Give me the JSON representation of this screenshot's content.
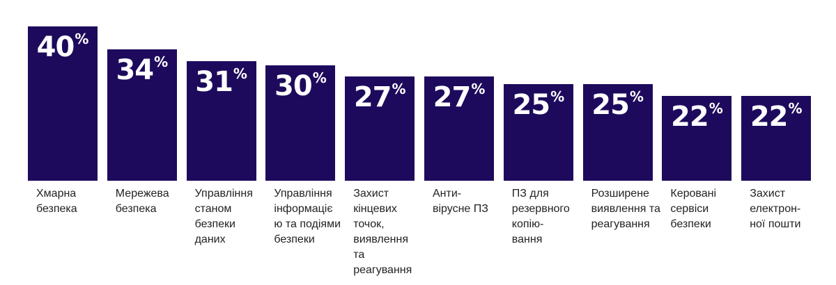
{
  "chart_data": {
    "type": "bar",
    "categories": [
      "Хмарна\nбезпека",
      "Мережева\nбезпека",
      "Управління\nстаном\nбезпеки\nданих",
      "Управління\nінформаціє\nю та подіями\nбезпеки",
      "Захист\nкінцевих\nточок,\nвиявлення\nта реагування",
      "Анти-\nвірусне ПЗ",
      "ПЗ для\nрезервного\nкопію-\nвання",
      "Розширене\nвиявлення та\nреагування",
      "Керовані\nсервіси\nбезпеки",
      "Захист\nелектрон-\nної пошти"
    ],
    "values": [
      40,
      34,
      31,
      30,
      27,
      27,
      25,
      25,
      22,
      22
    ],
    "value_labels": [
      "40",
      "34",
      "31",
      "30",
      "27",
      "27",
      "25",
      "25",
      "22",
      "22"
    ],
    "value_suffix": "%",
    "bar_color": "#1e0a5c",
    "label_color": "#222222",
    "title": "",
    "xlabel": "",
    "ylabel": "",
    "ylim": [
      0,
      40
    ],
    "grid": false,
    "legend": "none"
  }
}
